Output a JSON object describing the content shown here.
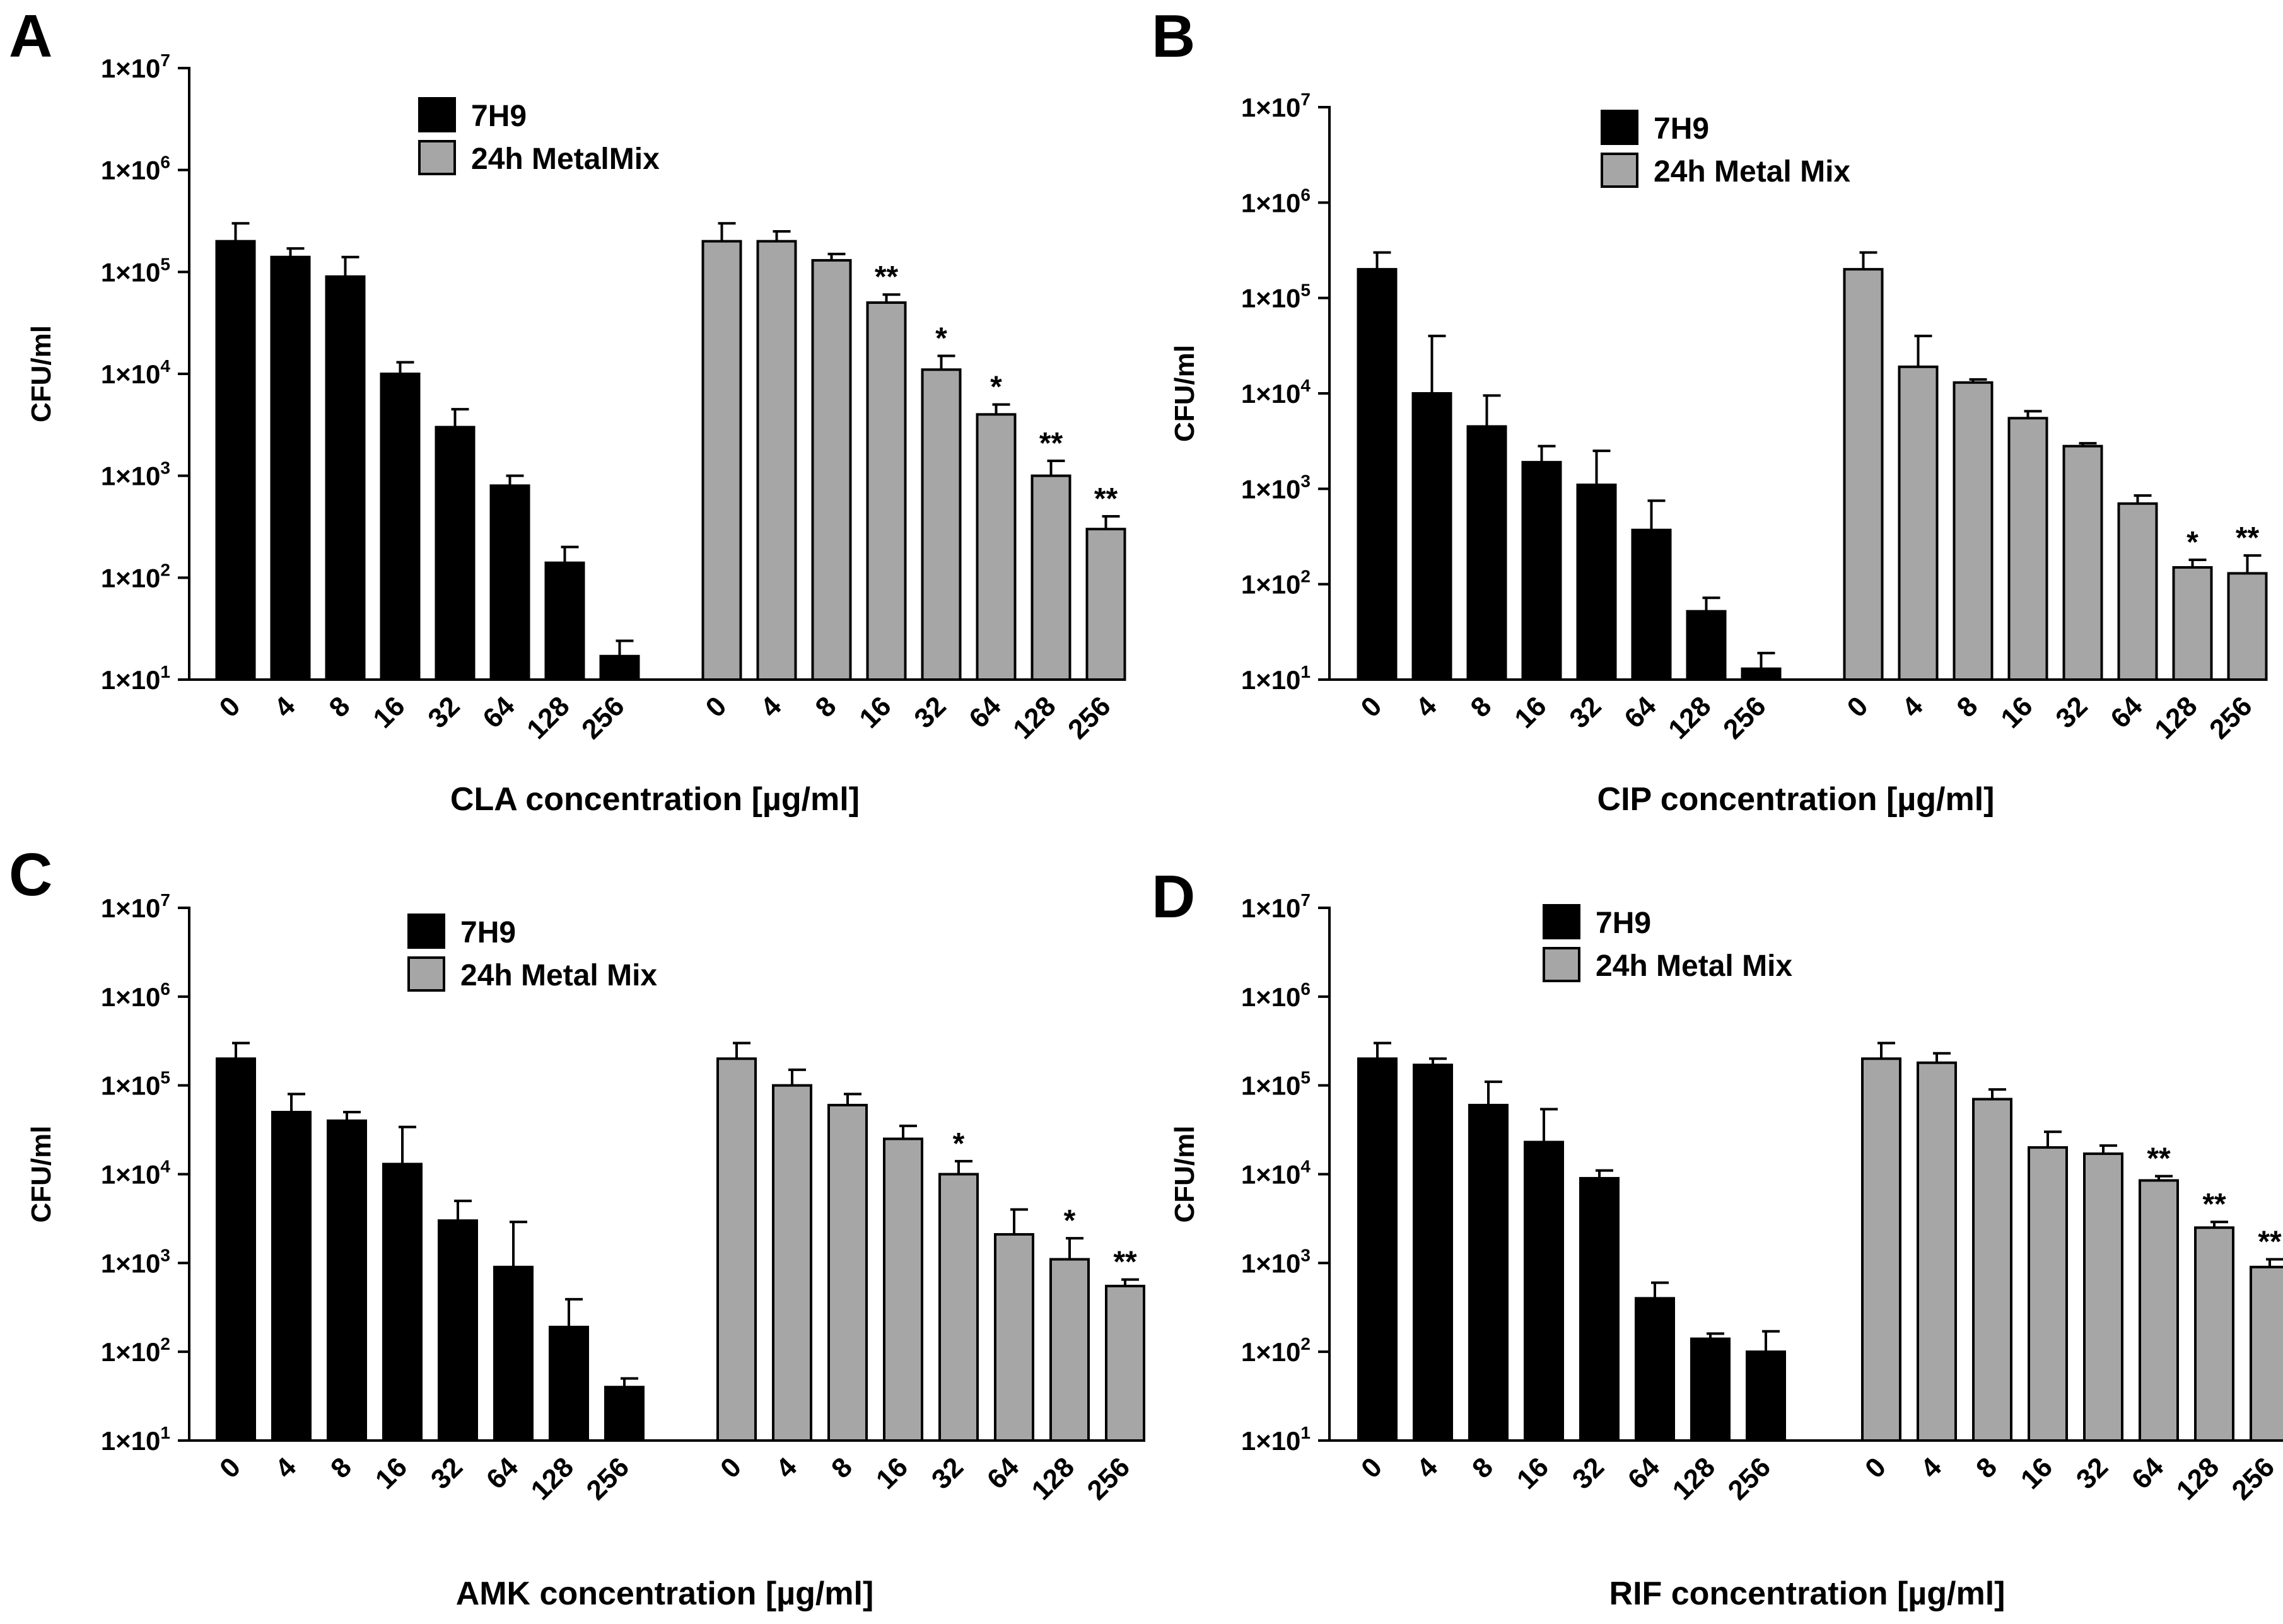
{
  "colors": {
    "black_bars": "#000000",
    "gray_bars": "#a6a6a6",
    "axis": "#000000"
  },
  "y_tick_exponents": [
    "1",
    "2",
    "3",
    "4",
    "5",
    "6",
    "7"
  ],
  "y_tick_base": "1×10",
  "chart_data": [
    {
      "panel": "A",
      "type": "bar",
      "yscale": "log",
      "ylim": [
        10,
        10000000
      ],
      "ylabel": "CFU/ml",
      "xlabel": "CLA concentration [µg/ml]",
      "legend": [
        "7H9",
        "24h MetalMix"
      ],
      "categories": [
        "0",
        "4",
        "8",
        "16",
        "32",
        "64",
        "128",
        "256"
      ],
      "series": [
        {
          "name": "7H9",
          "color": "black",
          "values": [
            200000,
            140000,
            90000,
            10000,
            3000,
            800,
            140,
            17
          ],
          "errors": [
            300000,
            170000,
            140000,
            13000,
            4500,
            1000,
            200,
            24
          ],
          "stars": [
            "",
            "",
            "",
            "",
            "",
            "",
            "",
            ""
          ]
        },
        {
          "name": "24h MetalMix",
          "color": "gray",
          "values": [
            200000,
            200000,
            130000,
            50000,
            11000,
            4000,
            1000,
            300
          ],
          "errors": [
            300000,
            250000,
            150000,
            60000,
            15000,
            5000,
            1400,
            400
          ],
          "stars": [
            "",
            "",
            "",
            "**",
            "*",
            "*",
            "**",
            "**"
          ]
        }
      ]
    },
    {
      "panel": "B",
      "type": "bar",
      "yscale": "log",
      "ylim": [
        10,
        10000000
      ],
      "ylabel": "CFU/ml",
      "xlabel": "CIP concentration [µg/ml]",
      "legend": [
        "7H9",
        "24h Metal Mix"
      ],
      "categories": [
        "0",
        "4",
        "8",
        "16",
        "32",
        "64",
        "128",
        "256"
      ],
      "series": [
        {
          "name": "7H9",
          "color": "black",
          "values": [
            200000,
            10000,
            4500,
            1900,
            1100,
            370,
            52,
            13
          ],
          "errors": [
            300000,
            40000,
            9500,
            2800,
            2500,
            750,
            72,
            19
          ],
          "stars": [
            "",
            "",
            "",
            "",
            "",
            "",
            "",
            ""
          ]
        },
        {
          "name": "24h Metal Mix",
          "color": "gray",
          "values": [
            200000,
            19000,
            13000,
            5500,
            2800,
            700,
            150,
            130
          ],
          "errors": [
            300000,
            40000,
            14000,
            6500,
            3000,
            850,
            180,
            200
          ],
          "stars": [
            "",
            "",
            "",
            "",
            "",
            "",
            "*",
            "**"
          ]
        }
      ]
    },
    {
      "panel": "C",
      "type": "bar",
      "yscale": "log",
      "ylim": [
        10,
        10000000
      ],
      "ylabel": "CFU/ml",
      "xlabel": "AMK concentration [µg/ml]",
      "legend": [
        "7H9",
        "24h Metal Mix"
      ],
      "categories": [
        "0",
        "4",
        "8",
        "16",
        "32",
        "64",
        "128",
        "256"
      ],
      "series": [
        {
          "name": "7H9",
          "color": "black",
          "values": [
            200000,
            50000,
            40000,
            13000,
            3000,
            900,
            190,
            40
          ],
          "errors": [
            300000,
            80000,
            50000,
            34000,
            5000,
            2900,
            390,
            50
          ],
          "stars": [
            "",
            "",
            "",
            "",
            "",
            "",
            "",
            ""
          ]
        },
        {
          "name": "24h Metal Mix",
          "color": "gray",
          "values": [
            200000,
            100000,
            60000,
            25000,
            10000,
            2100,
            1100,
            550
          ],
          "errors": [
            300000,
            150000,
            80000,
            35000,
            14000,
            4000,
            1900,
            650
          ],
          "stars": [
            "",
            "",
            "",
            "",
            "*",
            "",
            "*",
            "**"
          ]
        }
      ]
    },
    {
      "panel": "D",
      "type": "bar",
      "yscale": "log",
      "ylim": [
        10,
        10000000
      ],
      "ylabel": "CFU/ml",
      "xlabel": "RIF concentration [µg/ml]",
      "legend": [
        "7H9",
        "24h Metal Mix"
      ],
      "categories": [
        "0",
        "4",
        "8",
        "16",
        "32",
        "64",
        "128",
        "256"
      ],
      "series": [
        {
          "name": "7H9",
          "color": "black",
          "values": [
            200000,
            170000,
            60000,
            23000,
            9000,
            400,
            140,
            100
          ],
          "errors": [
            300000,
            200000,
            110000,
            54000,
            11000,
            600,
            160,
            170
          ],
          "stars": [
            "",
            "",
            "",
            "",
            "",
            "",
            "",
            ""
          ]
        },
        {
          "name": "24h Metal Mix",
          "color": "gray",
          "values": [
            200000,
            180000,
            70000,
            20000,
            17000,
            8500,
            2500,
            900
          ],
          "errors": [
            300000,
            230000,
            90000,
            30000,
            21000,
            9500,
            2900,
            1100
          ],
          "stars": [
            "",
            "",
            "",
            "",
            "",
            "**",
            "**",
            "**"
          ]
        }
      ]
    }
  ]
}
